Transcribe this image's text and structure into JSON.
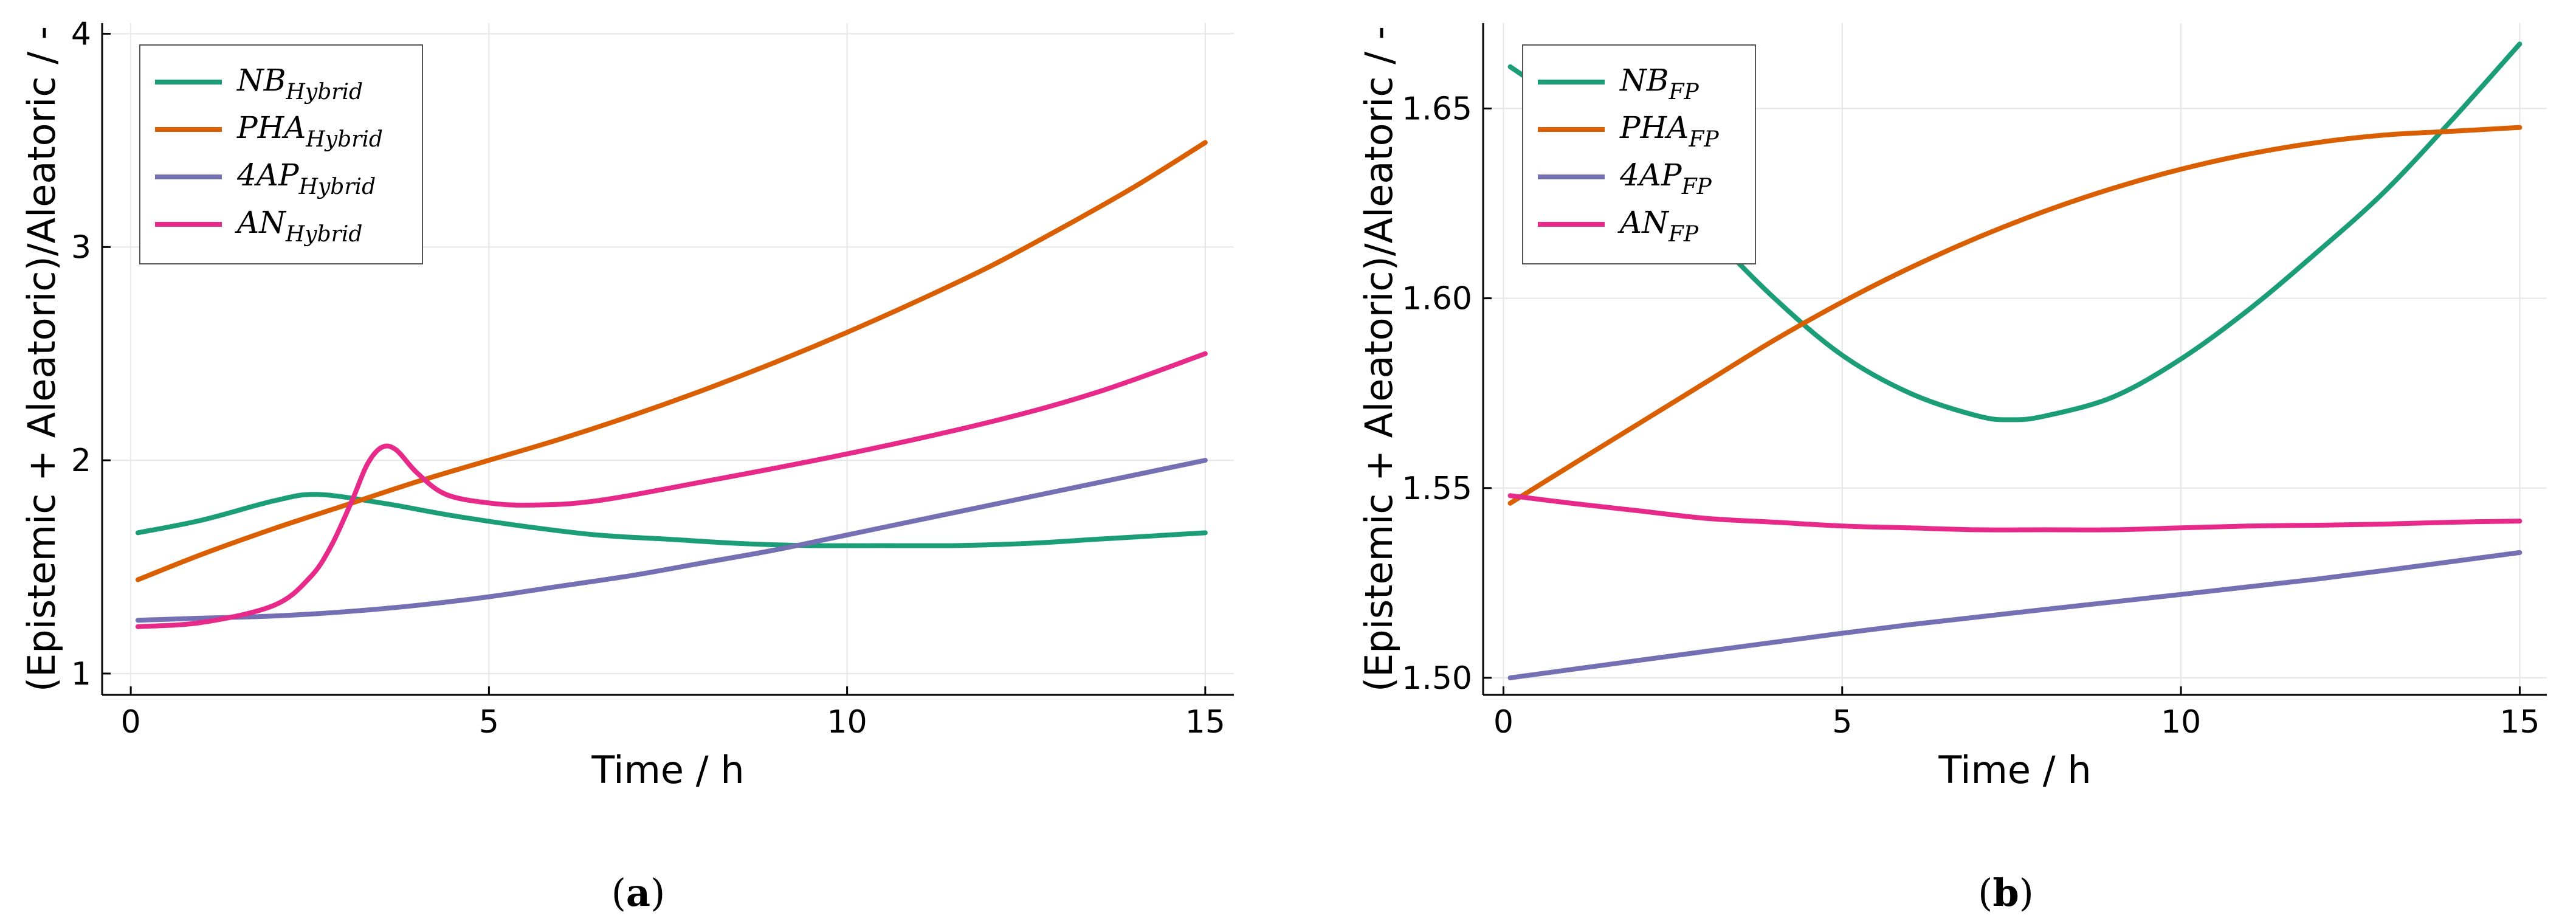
{
  "chart_data": [
    {
      "type": "line",
      "caption": "a",
      "xlabel": "Time / h",
      "ylabel": "(Epistemic + Aleatoric)/Aleatoric / -",
      "xlim": [
        -0.4,
        15.4
      ],
      "ylim": [
        0.9,
        4.05
      ],
      "xticks": [
        0,
        5,
        10,
        15
      ],
      "yticks": [
        1,
        2,
        3,
        4
      ],
      "grid": true,
      "legend_position": "top-left",
      "series": [
        {
          "name": "NB",
          "sub": "Hybrid",
          "color": "#1b9e77",
          "x": [
            0.1,
            1,
            2,
            2.6,
            3.5,
            4.5,
            5.5,
            6.5,
            7.5,
            8.5,
            9.5,
            10.5,
            11.5,
            12.5,
            13.5,
            15
          ],
          "y": [
            1.66,
            1.72,
            1.81,
            1.84,
            1.8,
            1.74,
            1.69,
            1.65,
            1.63,
            1.61,
            1.6,
            1.6,
            1.6,
            1.61,
            1.63,
            1.66
          ]
        },
        {
          "name": "PHA",
          "sub": "Hybrid",
          "color": "#d95f02",
          "x": [
            0.1,
            1,
            2,
            3,
            4,
            5,
            6,
            7,
            8,
            9,
            10,
            11,
            12,
            13,
            14,
            15
          ],
          "y": [
            1.44,
            1.56,
            1.68,
            1.79,
            1.9,
            2.0,
            2.1,
            2.21,
            2.33,
            2.46,
            2.6,
            2.75,
            2.91,
            3.09,
            3.28,
            3.49
          ]
        },
        {
          "name": "4AP",
          "sub": "Hybrid",
          "color": "#7570b3",
          "x": [
            0.1,
            1,
            2,
            3,
            4,
            5,
            6,
            7,
            8,
            9,
            10,
            11,
            12,
            13,
            14,
            15
          ],
          "y": [
            1.25,
            1.26,
            1.27,
            1.29,
            1.32,
            1.36,
            1.41,
            1.46,
            1.52,
            1.58,
            1.65,
            1.72,
            1.79,
            1.86,
            1.93,
            2.0
          ]
        },
        {
          "name": "AN",
          "sub": "Hybrid",
          "color": "#e7298a",
          "x": [
            0.1,
            1,
            2,
            2.5,
            2.8,
            3.1,
            3.3,
            3.5,
            3.7,
            4.0,
            4.4,
            5.0,
            5.6,
            6.5,
            8,
            10,
            12,
            13.5,
            15
          ],
          "y": [
            1.22,
            1.24,
            1.32,
            1.45,
            1.6,
            1.82,
            1.98,
            2.06,
            2.05,
            1.94,
            1.84,
            1.8,
            1.79,
            1.81,
            1.9,
            2.03,
            2.18,
            2.32,
            2.5
          ]
        }
      ]
    },
    {
      "type": "line",
      "caption": "b",
      "xlabel": "Time / h",
      "ylabel": "(Epistemic + Aleatoric)/Aleatoric / -",
      "xlim": [
        -0.3,
        15.4
      ],
      "ylim": [
        1.4955,
        1.6725
      ],
      "xticks": [
        0,
        5,
        10,
        15
      ],
      "yticks": [
        1.5,
        1.55,
        1.6,
        1.65
      ],
      "ytick_labels": [
        "1.50",
        "1.55",
        "1.60",
        "1.65"
      ],
      "grid": true,
      "legend_position": "top-left",
      "series": [
        {
          "name": "NB",
          "sub": "FP",
          "color": "#1b9e77",
          "x": [
            0.1,
            1,
            2,
            3,
            4,
            5,
            6,
            7,
            7.5,
            8,
            9,
            10,
            11,
            12,
            13,
            14,
            15
          ],
          "y": [
            1.661,
            1.65,
            1.637,
            1.618,
            1.6,
            1.585,
            1.575,
            1.569,
            1.568,
            1.569,
            1.574,
            1.584,
            1.597,
            1.612,
            1.628,
            1.647,
            1.667
          ]
        },
        {
          "name": "PHA",
          "sub": "FP",
          "color": "#d95f02",
          "x": [
            0.1,
            1,
            2,
            3,
            4,
            5,
            6,
            7,
            8,
            9,
            10,
            11,
            12,
            13,
            14,
            15
          ],
          "y": [
            1.546,
            1.556,
            1.567,
            1.578,
            1.589,
            1.599,
            1.608,
            1.616,
            1.623,
            1.629,
            1.634,
            1.638,
            1.641,
            1.643,
            1.644,
            1.645
          ]
        },
        {
          "name": "4AP",
          "sub": "FP",
          "color": "#7570b3",
          "x": [
            0.1,
            3,
            6,
            9,
            12,
            15
          ],
          "y": [
            1.5,
            1.507,
            1.514,
            1.52,
            1.526,
            1.533
          ]
        },
        {
          "name": "AN",
          "sub": "FP",
          "color": "#e7298a",
          "x": [
            0.1,
            1,
            2,
            3,
            4,
            5,
            6,
            7,
            8,
            9,
            10,
            11,
            12,
            13,
            14,
            15
          ],
          "y": [
            1.548,
            1.546,
            1.544,
            1.542,
            1.541,
            1.54,
            1.5395,
            1.539,
            1.539,
            1.539,
            1.5395,
            1.54,
            1.5402,
            1.5405,
            1.541,
            1.5413
          ]
        }
      ]
    }
  ]
}
